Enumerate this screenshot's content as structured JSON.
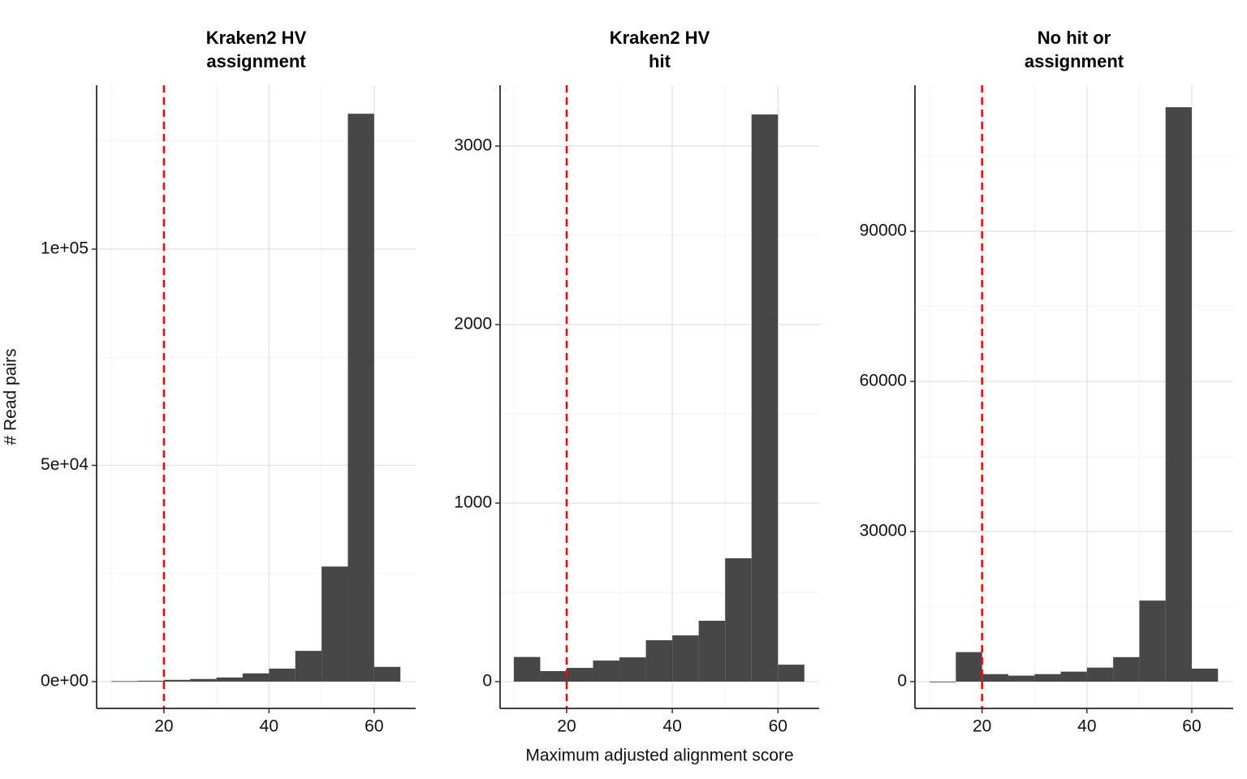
{
  "chart_data": [
    {
      "type": "histogram",
      "title": "Kraken2 HV\nassignment",
      "y_label": "# Read pairs",
      "bins": [
        10,
        15,
        20,
        25,
        30,
        35,
        40,
        45,
        50,
        55,
        60,
        65
      ],
      "values": [
        100,
        200,
        400,
        600,
        950,
        1900,
        3000,
        7100,
        26600,
        131300,
        3400
      ],
      "color": "#474747",
      "xlim": [
        7.2,
        67.9
      ],
      "xticks": [
        20,
        40,
        60
      ],
      "ylim": [
        -6200,
        137900
      ],
      "yticks": [
        {
          "value": 0,
          "label": "0e+00"
        },
        {
          "value": 50000,
          "label": "5e+04"
        },
        {
          "value": 100000,
          "label": "1e+05"
        }
      ],
      "minor_grid_x": [
        10,
        30,
        50
      ],
      "minor_grid_y": [
        25000,
        75000,
        125000
      ],
      "vline": 20,
      "vline_color": "#ff0000",
      "grid": true
    },
    {
      "type": "histogram",
      "title": "Kraken2 HV\nhit",
      "x_label": "Maximum adjusted alignment score",
      "bins": [
        10,
        15,
        20,
        25,
        30,
        35,
        40,
        45,
        50,
        55,
        60,
        65
      ],
      "values": [
        138,
        59,
        77,
        118,
        136,
        232,
        259,
        341,
        691,
        3177,
        95
      ],
      "color": "#474747",
      "xlim": [
        7.4,
        67.8
      ],
      "xticks": [
        20,
        40,
        60
      ],
      "ylim": [
        -150,
        3341
      ],
      "yticks": [
        0,
        1000,
        2000,
        3000
      ],
      "minor_grid_x": [
        10,
        30,
        50
      ],
      "minor_grid_y": [
        500,
        1500,
        2500
      ],
      "vline": 20,
      "vline_color": "#ff0000",
      "grid": true
    },
    {
      "type": "histogram",
      "title": "No hit or\nassignment",
      "bins": [
        10,
        15,
        20,
        25,
        30,
        35,
        40,
        45,
        50,
        55,
        60,
        65
      ],
      "values": [
        0,
        5900,
        1500,
        1200,
        1500,
        2000,
        2800,
        4900,
        16200,
        114800,
        2600
      ],
      "color": "#474747",
      "xlim": [
        7.2,
        67.9
      ],
      "xticks": [
        20,
        40,
        60
      ],
      "ylim": [
        -5350,
        119200
      ],
      "yticks": [
        0,
        30000,
        60000,
        90000
      ],
      "minor_grid_x": [
        10,
        30,
        50
      ],
      "minor_grid_y": [
        15000,
        45000,
        75000,
        105000
      ],
      "vline": 20,
      "vline_color": "#ff0000",
      "grid": true
    }
  ]
}
